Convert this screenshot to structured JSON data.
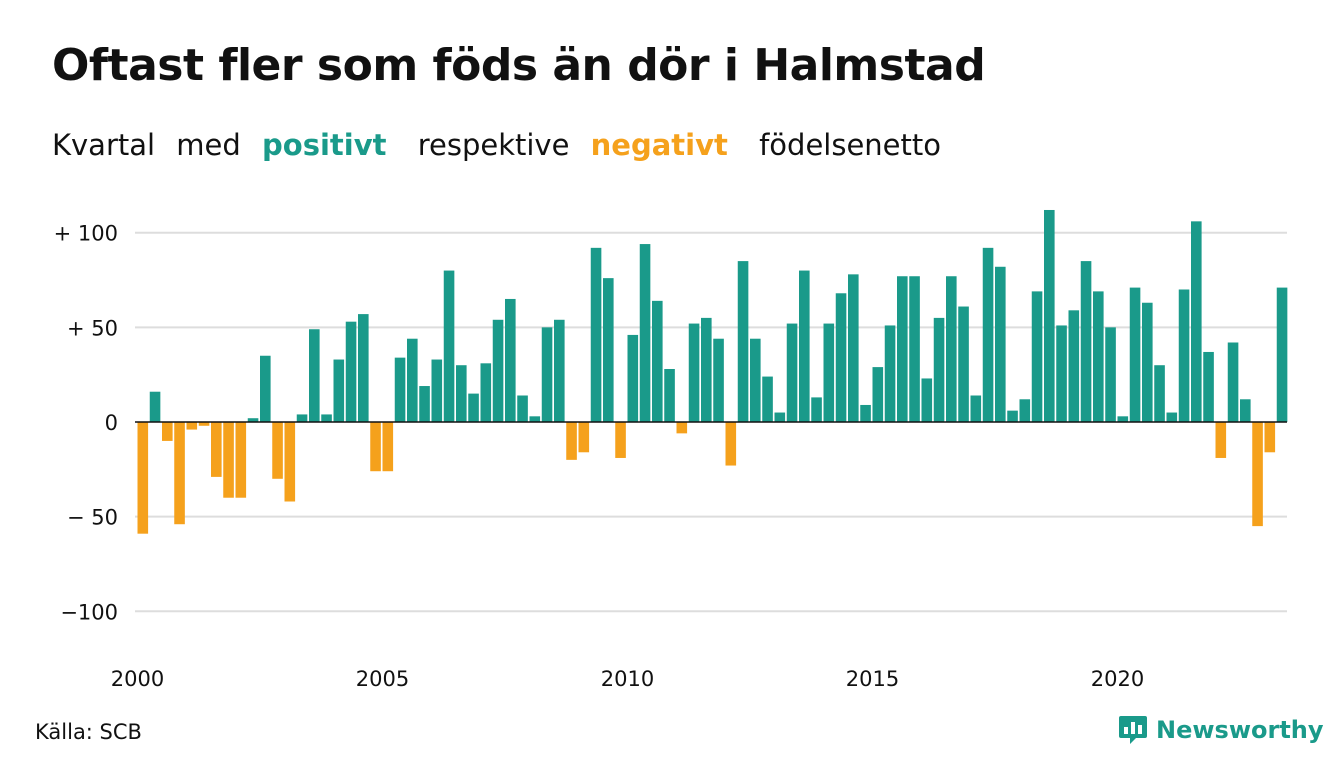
{
  "title": "Oftast fler som föds än dör i Halmstad",
  "subtitle": {
    "part1": "Kvartal",
    "part2": "med",
    "positive": "positivt",
    "part3": "respektive",
    "negative": "negativt",
    "part4": "födelsenetto"
  },
  "source": "Källa: SCB",
  "brand": "Newsworthy",
  "colors": {
    "positive": "#1a9a8a",
    "negative": "#f5a11c",
    "grid": "#dddddd",
    "text": "#111111"
  },
  "chart_data": {
    "type": "bar",
    "title": "Oftast fler som föds än dör i Halmstad",
    "subtitle": "Kvartal med positivt respektive negativt födelsenetto",
    "start_year": 2000,
    "quarters_per_year": 4,
    "values": [
      -59,
      16,
      -10,
      -54,
      -4,
      -2,
      -29,
      -40,
      -40,
      2,
      35,
      -30,
      -42,
      4,
      49,
      4,
      33,
      53,
      57,
      -26,
      -26,
      34,
      44,
      19,
      33,
      80,
      30,
      15,
      31,
      54,
      65,
      14,
      3,
      50,
      54,
      -20,
      -16,
      92,
      76,
      -19,
      46,
      94,
      64,
      28,
      -6,
      52,
      55,
      44,
      -23,
      85,
      44,
      24,
      5,
      52,
      80,
      13,
      52,
      68,
      78,
      9,
      29,
      51,
      77,
      77,
      23,
      55,
      77,
      61,
      14,
      92,
      82,
      6,
      12,
      69,
      112,
      51,
      59,
      85,
      69,
      50,
      3,
      71,
      63,
      30,
      5,
      70,
      106,
      37,
      -19,
      42,
      12,
      -55,
      -16,
      71
    ],
    "y_ticks": [
      {
        "value": 100,
        "label": "+ 100"
      },
      {
        "value": 50,
        "label": "+  50"
      },
      {
        "value": 0,
        "label": "0"
      },
      {
        "value": -50,
        "label": "− 50"
      },
      {
        "value": -100,
        "label": "−100"
      }
    ],
    "x_ticks": [
      "2000",
      "2005",
      "2010",
      "2015",
      "2020"
    ],
    "ylim": [
      -110,
      115
    ],
    "grid": true
  }
}
